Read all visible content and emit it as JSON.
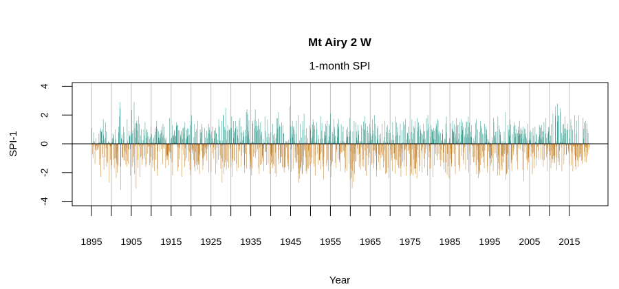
{
  "chart_data": {
    "type": "bar",
    "title": "Mt Airy 2 W",
    "subtitle": "1-month SPI",
    "xlabel": "Year",
    "ylabel": "SPI-1",
    "xlim": [
      1890,
      2025
    ],
    "ylim": [
      -4,
      4
    ],
    "yticks": [
      -4,
      -2,
      0,
      2,
      4
    ],
    "xticks": [
      1895,
      1900,
      1905,
      1910,
      1915,
      1920,
      1925,
      1930,
      1935,
      1940,
      1945,
      1950,
      1955,
      1960,
      1965,
      1970,
      1975,
      1980,
      1985,
      1990,
      1995,
      2000,
      2005,
      2010,
      2015
    ],
    "xtick_labels": [
      "1895",
      "1905",
      "1915",
      "1925",
      "1935",
      "1945",
      "1955",
      "1965",
      "1975",
      "1985",
      "1995",
      "2005",
      "2015"
    ],
    "grid": "vertical every 5 years",
    "colors": {
      "positive": "#379a8c",
      "negative": "#c2822e",
      "grid": "#bebebe"
    },
    "resolution": "monthly, summarized as yearly extremes",
    "year_start": 1895,
    "yearly_max": [
      1.1,
      0.7,
      1.7,
      1.5,
      0.2,
      1.0,
      1.2,
      2.9,
      1.7,
      0.9,
      2.9,
      1.9,
      1.4,
      1.5,
      1.2,
      1.1,
      1.6,
      1.4,
      1.2,
      1.8,
      1.3,
      1.5,
      1.1,
      1.5,
      1.3,
      2.0,
      1.6,
      1.4,
      1.1,
      1.4,
      1.2,
      1.7,
      1.6,
      2.5,
      1.3,
      1.9,
      1.6,
      1.8,
      2.2,
      2.4,
      1.6,
      2.4,
      1.5,
      1.9,
      1.7,
      1.4,
      2.2,
      1.5,
      1.3,
      2.6,
      1.6,
      2.0,
      1.4,
      2.1,
      1.3,
      1.7,
      1.5,
      1.9,
      1.4,
      1.6,
      2.1,
      1.4,
      1.7,
      1.2,
      1.8,
      1.6,
      1.5,
      1.3,
      1.9,
      1.4,
      1.7,
      2.0,
      1.4,
      1.6,
      1.3,
      1.5,
      1.9,
      1.4,
      1.7,
      1.2,
      1.7,
      1.8,
      1.5,
      1.4,
      2.0,
      1.3,
      1.7,
      1.6,
      1.4,
      1.9,
      1.6,
      1.8,
      1.7,
      1.5,
      1.9,
      1.3,
      1.7,
      1.6,
      1.4,
      1.2,
      1.8,
      1.5,
      1.9,
      2.2,
      1.3,
      1.7,
      1.5,
      1.6,
      1.2,
      1.4,
      1.1,
      1.2,
      1.3,
      1.5,
      1.8,
      2.1,
      2.6,
      2.8,
      1.9,
      1.4,
      1.7,
      2.0,
      2.0,
      1.8,
      1.6
    ],
    "yearly_min": [
      -1.4,
      -0.5,
      -2.3,
      -1.8,
      -2.7,
      -1.7,
      -2.4,
      -3.2,
      -2.0,
      -2.2,
      -2.1,
      -3.1,
      -2.3,
      -1.6,
      -1.8,
      -1.9,
      -2.2,
      -1.4,
      -1.7,
      -1.5,
      -2.2,
      -1.9,
      -2.3,
      -1.6,
      -2.2,
      -1.9,
      -1.8,
      -2.1,
      -1.5,
      -2.0,
      -2.0,
      -2.1,
      -2.7,
      -2.1,
      -1.7,
      -2.3,
      -1.9,
      -1.6,
      -2.0,
      -1.8,
      -2.2,
      -1.7,
      -2.4,
      -1.9,
      -2.1,
      -1.7,
      -2.3,
      -1.6,
      -2.0,
      -1.8,
      -2.2,
      -1.7,
      -2.7,
      -1.9,
      -2.1,
      -1.6,
      -2.2,
      -1.8,
      -2.5,
      -1.9,
      -2.3,
      -1.7,
      -1.9,
      -2.0,
      -2.5,
      -3.1,
      -2.1,
      -1.8,
      -2.2,
      -1.5,
      -1.7,
      -2.3,
      -1.8,
      -2.1,
      -2.4,
      -1.9,
      -2.1,
      -2.3,
      -1.6,
      -2.2,
      -2.5,
      -2.4,
      -1.9,
      -2.0,
      -2.2,
      -2.3,
      -1.8,
      -2.1,
      -2.0,
      -2.4,
      -1.6,
      -2.1,
      -1.9,
      -1.8,
      -2.0,
      -1.5,
      -2.1,
      -2.4,
      -1.7,
      -2.0,
      -1.9,
      -2.2,
      -2.2,
      -1.8,
      -2.5,
      -1.9,
      -1.7,
      -2.0,
      -2.6,
      -1.8,
      -2.1,
      -1.7,
      -1.4,
      -1.6,
      -1.9,
      -1.7,
      -1.8,
      -1.5,
      -1.9,
      -1.4,
      -1.9,
      -1.8,
      -1.6,
      -1.4,
      -1.3
    ]
  }
}
